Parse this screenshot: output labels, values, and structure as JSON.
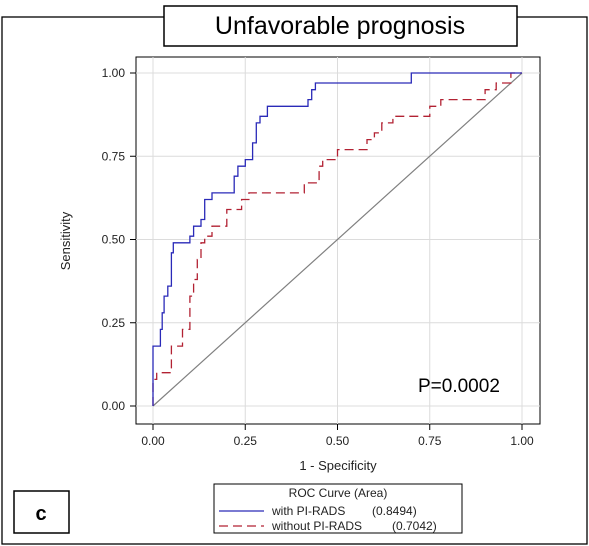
{
  "chart_data": {
    "type": "line",
    "title": "Unfavorable prognosis",
    "xlabel": "1 - Specificity",
    "ylabel": "Sensitivity",
    "xlim": [
      0,
      1
    ],
    "ylim": [
      0,
      1
    ],
    "xticks": [
      "0.00",
      "0.25",
      "0.50",
      "0.75",
      "1.00"
    ],
    "yticks": [
      "0.00",
      "0.25",
      "0.50",
      "0.75",
      "1.00"
    ],
    "grid": true,
    "annotation": "P=0.0002",
    "panel_label": "c",
    "legend_title": "ROC Curve (Area)",
    "legend_position": "bottom",
    "series": [
      {
        "name": "with PI-RADS",
        "area": "(0.8494)",
        "color": "#2a2ab8",
        "dash": "solid",
        "points": [
          [
            0,
            0
          ],
          [
            0,
            0.18
          ],
          [
            0.02,
            0.18
          ],
          [
            0.02,
            0.23
          ],
          [
            0.025,
            0.23
          ],
          [
            0.025,
            0.28
          ],
          [
            0.03,
            0.28
          ],
          [
            0.03,
            0.33
          ],
          [
            0.04,
            0.33
          ],
          [
            0.04,
            0.36
          ],
          [
            0.05,
            0.36
          ],
          [
            0.05,
            0.46
          ],
          [
            0.055,
            0.46
          ],
          [
            0.055,
            0.49
          ],
          [
            0.1,
            0.49
          ],
          [
            0.1,
            0.51
          ],
          [
            0.11,
            0.51
          ],
          [
            0.11,
            0.54
          ],
          [
            0.13,
            0.54
          ],
          [
            0.13,
            0.56
          ],
          [
            0.14,
            0.56
          ],
          [
            0.14,
            0.62
          ],
          [
            0.16,
            0.62
          ],
          [
            0.16,
            0.64
          ],
          [
            0.22,
            0.64
          ],
          [
            0.22,
            0.69
          ],
          [
            0.23,
            0.69
          ],
          [
            0.23,
            0.72
          ],
          [
            0.25,
            0.72
          ],
          [
            0.25,
            0.74
          ],
          [
            0.27,
            0.74
          ],
          [
            0.27,
            0.79
          ],
          [
            0.28,
            0.79
          ],
          [
            0.28,
            0.85
          ],
          [
            0.29,
            0.85
          ],
          [
            0.29,
            0.87
          ],
          [
            0.31,
            0.87
          ],
          [
            0.31,
            0.9
          ],
          [
            0.42,
            0.9
          ],
          [
            0.42,
            0.92
          ],
          [
            0.43,
            0.92
          ],
          [
            0.43,
            0.95
          ],
          [
            0.44,
            0.95
          ],
          [
            0.44,
            0.97
          ],
          [
            0.7,
            0.97
          ],
          [
            0.7,
            1
          ],
          [
            1,
            1
          ]
        ]
      },
      {
        "name": "without PI-RADS",
        "area": "(0.7042)",
        "color": "#b22233",
        "dash": "9,5",
        "points": [
          [
            0,
            0
          ],
          [
            0,
            0.08
          ],
          [
            0.01,
            0.08
          ],
          [
            0.01,
            0.1
          ],
          [
            0.05,
            0.1
          ],
          [
            0.05,
            0.18
          ],
          [
            0.08,
            0.18
          ],
          [
            0.08,
            0.23
          ],
          [
            0.1,
            0.23
          ],
          [
            0.1,
            0.33
          ],
          [
            0.11,
            0.33
          ],
          [
            0.11,
            0.38
          ],
          [
            0.12,
            0.38
          ],
          [
            0.12,
            0.44
          ],
          [
            0.13,
            0.44
          ],
          [
            0.13,
            0.49
          ],
          [
            0.14,
            0.49
          ],
          [
            0.14,
            0.51
          ],
          [
            0.16,
            0.51
          ],
          [
            0.16,
            0.54
          ],
          [
            0.2,
            0.54
          ],
          [
            0.2,
            0.59
          ],
          [
            0.24,
            0.59
          ],
          [
            0.24,
            0.62
          ],
          [
            0.26,
            0.62
          ],
          [
            0.26,
            0.64
          ],
          [
            0.41,
            0.64
          ],
          [
            0.41,
            0.67
          ],
          [
            0.45,
            0.67
          ],
          [
            0.45,
            0.72
          ],
          [
            0.46,
            0.72
          ],
          [
            0.46,
            0.74
          ],
          [
            0.5,
            0.74
          ],
          [
            0.5,
            0.77
          ],
          [
            0.58,
            0.77
          ],
          [
            0.58,
            0.8
          ],
          [
            0.6,
            0.8
          ],
          [
            0.6,
            0.82
          ],
          [
            0.62,
            0.82
          ],
          [
            0.62,
            0.85
          ],
          [
            0.65,
            0.85
          ],
          [
            0.65,
            0.87
          ],
          [
            0.75,
            0.87
          ],
          [
            0.75,
            0.9
          ],
          [
            0.78,
            0.9
          ],
          [
            0.78,
            0.92
          ],
          [
            0.9,
            0.92
          ],
          [
            0.9,
            0.95
          ],
          [
            0.93,
            0.95
          ],
          [
            0.93,
            0.97
          ],
          [
            0.97,
            0.97
          ],
          [
            0.97,
            1
          ],
          [
            1,
            1
          ]
        ]
      }
    ],
    "reference_line": {
      "color": "#808080",
      "points": [
        [
          0,
          0
        ],
        [
          1,
          1
        ]
      ]
    }
  }
}
